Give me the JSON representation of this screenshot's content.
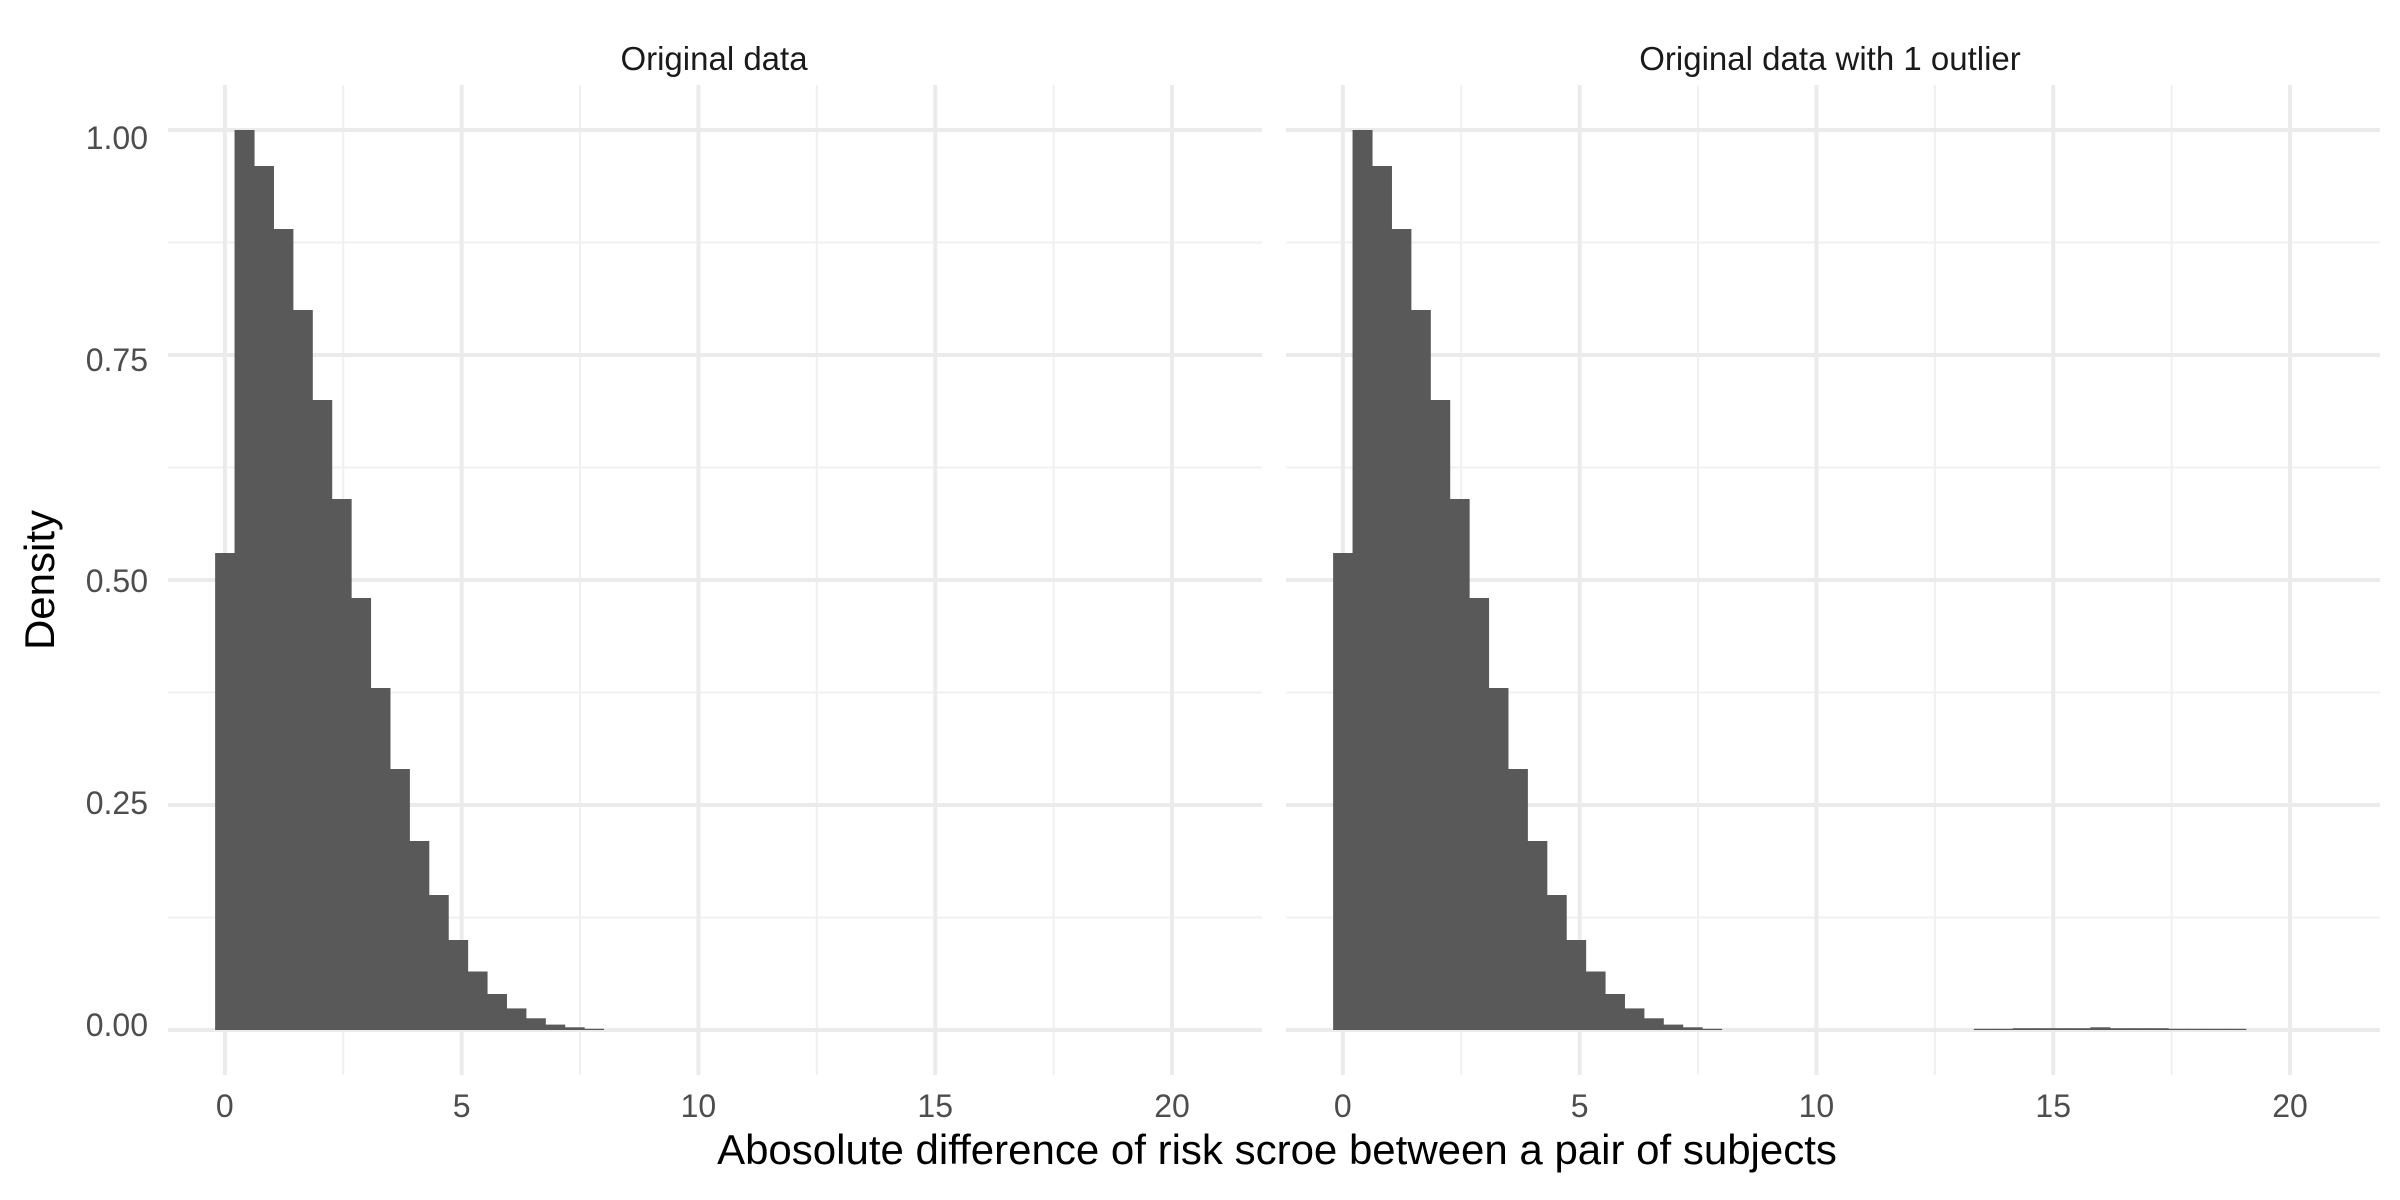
{
  "chart_data": {
    "type": "bar",
    "xlabel": "Abosolute difference of risk scroe between a pair of subjects",
    "ylabel": "Density",
    "xlim": [
      -1.2,
      21.9
    ],
    "ylim": [
      -0.05,
      1.05
    ],
    "x_ticks": [
      0,
      5,
      10,
      15,
      20
    ],
    "x_tick_labels": [
      "0",
      "5",
      "10",
      "15",
      "20"
    ],
    "y_ticks": [
      0,
      0.25,
      0.5,
      0.75,
      1
    ],
    "y_tick_labels": [
      "0.00",
      "0.25",
      "0.50",
      "0.75",
      "1.00"
    ],
    "grid": true,
    "legend": "none",
    "bar_color": "#595959",
    "bin_width": 0.41,
    "panels": [
      {
        "title": "Original data",
        "bins": [
          {
            "x": 0.0,
            "y": 0.53
          },
          {
            "x": 0.41,
            "y": 1.0
          },
          {
            "x": 0.82,
            "y": 0.96
          },
          {
            "x": 1.23,
            "y": 0.89
          },
          {
            "x": 1.64,
            "y": 0.8
          },
          {
            "x": 2.05,
            "y": 0.7
          },
          {
            "x": 2.46,
            "y": 0.59
          },
          {
            "x": 2.87,
            "y": 0.48
          },
          {
            "x": 3.28,
            "y": 0.38
          },
          {
            "x": 3.69,
            "y": 0.29
          },
          {
            "x": 4.1,
            "y": 0.21
          },
          {
            "x": 4.51,
            "y": 0.15
          },
          {
            "x": 4.92,
            "y": 0.1
          },
          {
            "x": 5.33,
            "y": 0.065
          },
          {
            "x": 5.74,
            "y": 0.04
          },
          {
            "x": 6.15,
            "y": 0.024
          },
          {
            "x": 6.56,
            "y": 0.013
          },
          {
            "x": 6.97,
            "y": 0.006
          },
          {
            "x": 7.38,
            "y": 0.003
          },
          {
            "x": 7.79,
            "y": 0.001
          }
        ]
      },
      {
        "title": "Original data with 1 outlier",
        "bins": [
          {
            "x": 0.0,
            "y": 0.53
          },
          {
            "x": 0.41,
            "y": 1.0
          },
          {
            "x": 0.82,
            "y": 0.96
          },
          {
            "x": 1.23,
            "y": 0.89
          },
          {
            "x": 1.64,
            "y": 0.8
          },
          {
            "x": 2.05,
            "y": 0.7
          },
          {
            "x": 2.46,
            "y": 0.59
          },
          {
            "x": 2.87,
            "y": 0.48
          },
          {
            "x": 3.28,
            "y": 0.38
          },
          {
            "x": 3.69,
            "y": 0.29
          },
          {
            "x": 4.1,
            "y": 0.21
          },
          {
            "x": 4.51,
            "y": 0.15
          },
          {
            "x": 4.92,
            "y": 0.1
          },
          {
            "x": 5.33,
            "y": 0.065
          },
          {
            "x": 5.74,
            "y": 0.04
          },
          {
            "x": 6.15,
            "y": 0.024
          },
          {
            "x": 6.56,
            "y": 0.013
          },
          {
            "x": 6.97,
            "y": 0.006
          },
          {
            "x": 7.38,
            "y": 0.003
          },
          {
            "x": 7.79,
            "y": 0.001
          },
          {
            "x": 13.53,
            "y": 0.001
          },
          {
            "x": 13.94,
            "y": 0.001
          },
          {
            "x": 14.35,
            "y": 0.002
          },
          {
            "x": 14.76,
            "y": 0.002
          },
          {
            "x": 15.17,
            "y": 0.002
          },
          {
            "x": 15.58,
            "y": 0.002
          },
          {
            "x": 15.99,
            "y": 0.003
          },
          {
            "x": 16.4,
            "y": 0.002
          },
          {
            "x": 16.81,
            "y": 0.002
          },
          {
            "x": 17.22,
            "y": 0.002
          },
          {
            "x": 17.63,
            "y": 0.001
          },
          {
            "x": 18.04,
            "y": 0.001
          },
          {
            "x": 18.45,
            "y": 0.001
          },
          {
            "x": 18.86,
            "y": 0.001
          }
        ]
      }
    ]
  }
}
